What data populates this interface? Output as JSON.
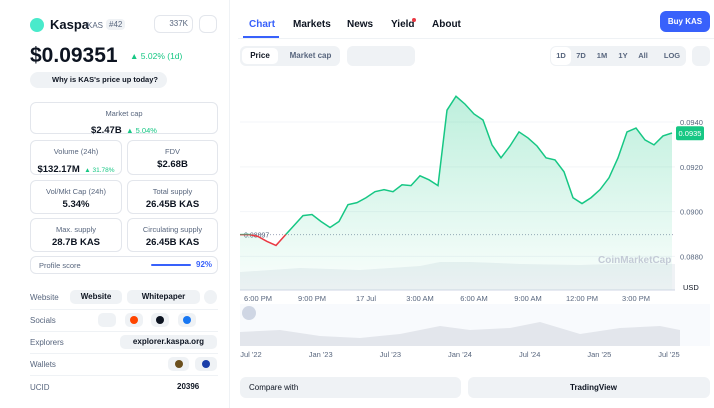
{
  "coin": {
    "name": "Kaspa",
    "symbol": "KAS",
    "rank": "#42",
    "watchlist": "337K"
  },
  "price": {
    "value": "$0.09351",
    "change": "5.02% (1d)",
    "why": "Why is KAS's price up today?"
  },
  "stats": [
    {
      "label": "Market cap",
      "value": "$2.47B",
      "change": "5.04%"
    },
    {
      "label": "Volume (24h)",
      "value": "$132.17M",
      "change": "31.78%"
    },
    {
      "label": "FDV",
      "value": "$2.68B"
    },
    {
      "label": "Vol/Mkt Cap (24h)",
      "value": "5.34%"
    },
    {
      "label": "Total supply",
      "value": "26.45B KAS"
    },
    {
      "label": "Max. supply",
      "value": "28.7B KAS"
    },
    {
      "label": "Circulating supply",
      "value": "26.45B KAS"
    }
  ],
  "profile": {
    "label": "Profile score",
    "value": "92%"
  },
  "links": {
    "website": {
      "label": "Website",
      "items": [
        "Website",
        "Whitepaper"
      ]
    },
    "socials": {
      "label": "Socials"
    },
    "explorers": {
      "label": "Explorers",
      "items": [
        "explorer.kaspa.org"
      ]
    },
    "wallets": {
      "label": "Wallets"
    },
    "ucid": {
      "label": "UCID",
      "value": "20396"
    }
  },
  "tabs": [
    "Chart",
    "Markets",
    "News",
    "Yield",
    "About"
  ],
  "buy": "Buy KAS",
  "toolbar": {
    "modes": [
      "Price",
      "Market cap"
    ],
    "ranges": [
      "1D",
      "7D",
      "1M",
      "1Y",
      "All",
      "LOG"
    ]
  },
  "chart_data": {
    "type": "line",
    "color": "#16c784",
    "down_color": "#ea3943",
    "categories": [
      null,
      null,
      "6:00 PM",
      null,
      null,
      null,
      null,
      null,
      "9:00 PM",
      null,
      null,
      null,
      null,
      null,
      "17 Jul",
      null,
      null,
      null,
      null,
      null,
      "3:00 AM",
      null,
      null,
      null,
      null,
      null,
      "6:00 AM",
      null,
      null,
      null,
      null,
      null,
      "9:00 AM",
      null,
      null,
      null,
      null,
      null,
      "12:00 PM",
      null,
      null,
      null,
      null,
      null,
      "3:00 PM",
      null,
      null,
      null,
      null
    ],
    "values": [
      0.08897,
      0.08898,
      0.08889,
      0.08867,
      0.08849,
      0.08894,
      0.08938,
      0.08982,
      0.08987,
      0.08956,
      0.08929,
      0.08956,
      0.09031,
      0.0904,
      0.09062,
      0.09089,
      0.09098,
      0.09089,
      0.0912,
      0.09116,
      0.0916,
      0.09142,
      0.09116,
      0.09453,
      0.09515,
      0.0948,
      0.09436,
      0.09409,
      0.09298,
      0.0924,
      0.09293,
      0.09356,
      0.09329,
      0.09293,
      0.0924,
      0.09231,
      0.09178,
      0.09062,
      0.09036,
      0.09062,
      0.09098,
      0.09151,
      0.0924,
      0.09356,
      0.09373,
      0.0932,
      0.09298,
      0.09338,
      0.09351
    ],
    "ylim": [
      0.0865,
      0.0961
    ],
    "yticks": [
      {
        "value": 0.088,
        "label": "0.0880"
      },
      {
        "value": 0.09,
        "label": "0.0900"
      },
      {
        "value": 0.092,
        "label": "0.0920"
      },
      {
        "value": 0.094,
        "label": "0.0940"
      }
    ],
    "reference_line": 0.08897,
    "last_price": {
      "value": 0.0935,
      "label": "0.0935"
    },
    "unit": "USD",
    "watermark": "CoinMarketCap",
    "navigator_labels": [
      "Jul '22",
      "Jan '23",
      "Jul '23",
      "Jan '24",
      "Jul '24",
      "Jan '25",
      "Jul '25"
    ]
  },
  "footer": {
    "compare": "Compare with",
    "tradingview": "TradingView"
  }
}
